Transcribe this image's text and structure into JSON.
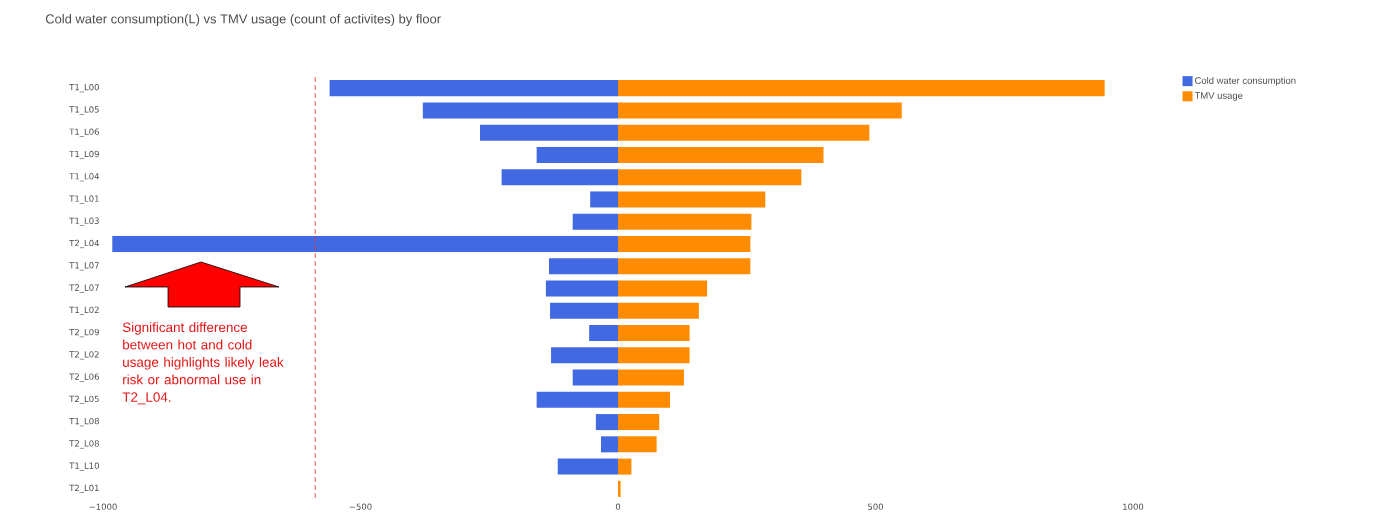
{
  "chart_data": {
    "type": "bar",
    "orientation": "horizontal",
    "title": "Cold water consumption(L) vs TMV usage (count of activites) by floor",
    "categories": [
      "T1_L00",
      "T1_L05",
      "T1_L06",
      "T1_L09",
      "T1_L04",
      "T1_L01",
      "T1_L03",
      "T2_L04",
      "T1_L07",
      "T2_L07",
      "T1_L02",
      "T2_L09",
      "T2_L02",
      "T2_L06",
      "T2_L05",
      "T1_L08",
      "T2_L08",
      "T1_L10",
      "T2_L01"
    ],
    "series": [
      {
        "name": "Cold water consumption",
        "color": "#4169e1",
        "values": [
          -560,
          -379,
          -268,
          -158,
          -226,
          -54,
          -88,
          -982,
          -134,
          -140,
          -132,
          -56,
          -130,
          -88,
          -158,
          -43,
          -33,
          -117,
          0
        ]
      },
      {
        "name": "TMV usage",
        "color": "#ff8c00",
        "values": [
          945,
          551,
          488,
          399,
          356,
          286,
          259,
          257,
          257,
          173,
          157,
          139,
          139,
          128,
          101,
          80,
          75,
          26,
          5
        ]
      }
    ],
    "xlim": [
      -1000,
      1000
    ],
    "stacked": true,
    "xticks": [
      {
        "value": -1000,
        "label": "−1000"
      },
      {
        "value": -500,
        "label": "−500"
      },
      0,
      500,
      1000
    ],
    "ref_lines": [
      {
        "axis": "x",
        "value": -588,
        "color": "#e8312a",
        "line_style": "dashed"
      }
    ],
    "annotations": [
      "Significant difference between hot and cold usage highlights likely leak risk or abnormal use in T2_L04."
    ],
    "legend": "top right"
  }
}
